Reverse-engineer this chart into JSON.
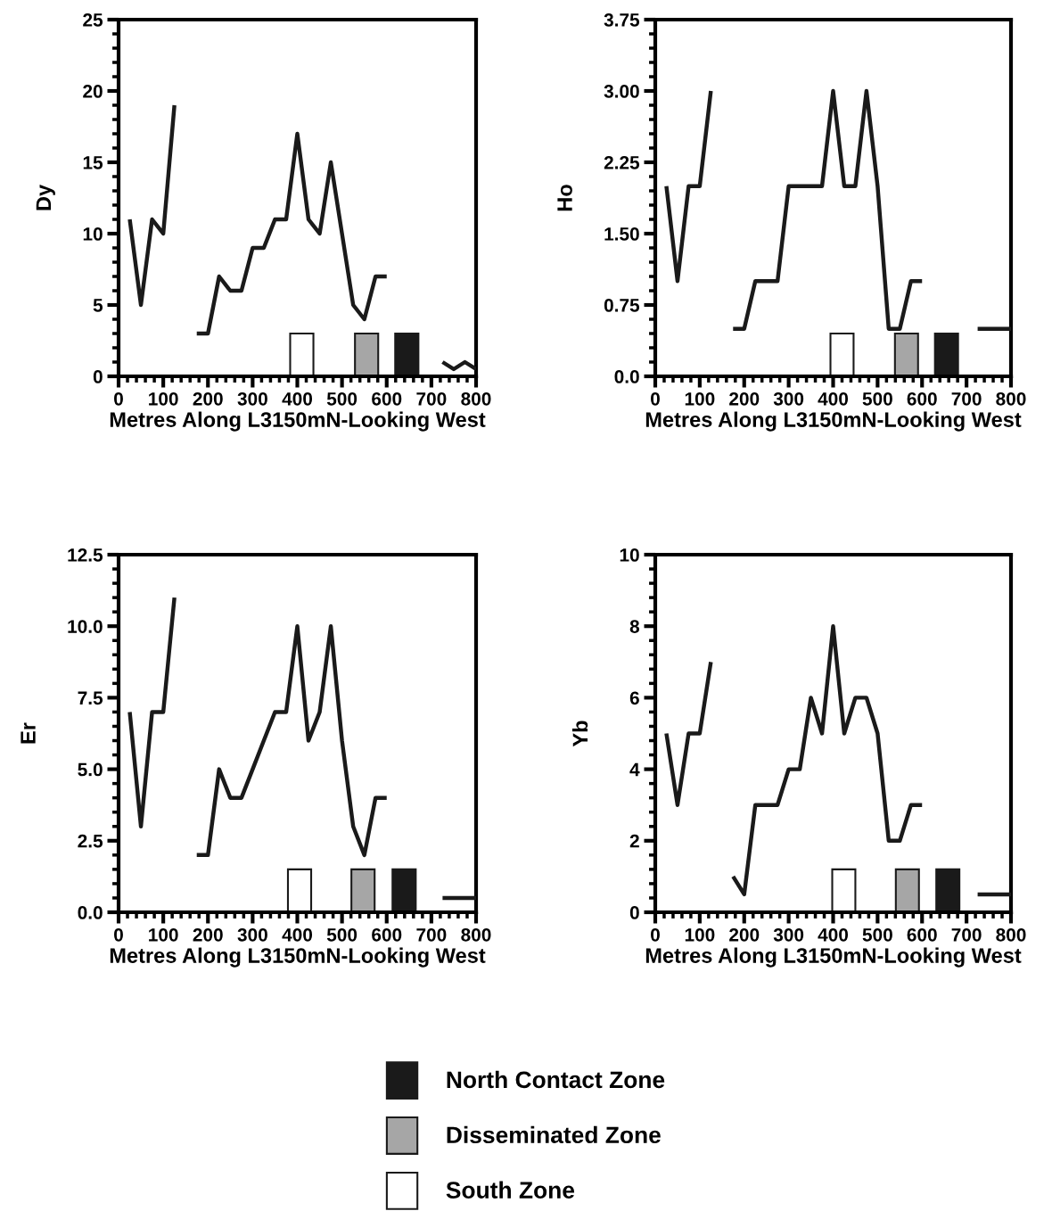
{
  "chart_data": [
    {
      "type": "line",
      "ylabel": "Dy",
      "xlabel": "Metres Along L3150mN-Looking West",
      "xlim": [
        0,
        800
      ],
      "xticks": [
        0,
        100,
        200,
        300,
        400,
        500,
        600,
        700,
        800
      ],
      "ylim": [
        0,
        25
      ],
      "yticks": [
        0,
        5,
        10,
        15,
        20,
        25
      ],
      "series": [
        {
          "color": "#1a1a1a",
          "x": [
            25,
            50,
            75,
            100,
            125,
            150,
            175,
            200,
            225,
            250,
            275,
            300,
            325,
            350,
            375,
            400,
            425,
            450,
            475,
            500,
            525,
            550,
            575,
            600,
            625,
            725,
            750,
            775,
            800
          ],
          "values": [
            11,
            5,
            11,
            10,
            19,
            null,
            3,
            3,
            7,
            6,
            6,
            9,
            9,
            11,
            11,
            17,
            11,
            10,
            15,
            10,
            5,
            4,
            7,
            7,
            null,
            1,
            0.5,
            1,
            0.5
          ]
        },
        {
          "type": "bar",
          "color": "#ffffff",
          "x": [
            410
          ],
          "values": [
            3
          ]
        },
        {
          "type": "bar",
          "color": "#a6a6a6",
          "x": [
            555
          ],
          "values": [
            3
          ]
        },
        {
          "type": "bar",
          "color": "#1a1a1a",
          "x": [
            645
          ],
          "values": [
            3
          ]
        }
      ]
    },
    {
      "type": "line",
      "ylabel": "Ho",
      "xlabel": "Metres Along L3150mN-Looking West",
      "xlim": [
        0,
        800
      ],
      "xticks": [
        0,
        100,
        200,
        300,
        400,
        500,
        600,
        700,
        800
      ],
      "ylim": [
        0,
        3.75
      ],
      "yticks": [
        {
          "value": 0,
          "label": "0.0"
        },
        {
          "value": 0.75,
          "label": "0.75"
        },
        {
          "value": 1.5,
          "label": "1.50"
        },
        {
          "value": 2.25,
          "label": "2.25"
        },
        {
          "value": 3,
          "label": "3.00"
        },
        {
          "value": 3.75,
          "label": "3.75"
        }
      ],
      "series": [
        {
          "color": "#1a1a1a",
          "x": [
            25,
            50,
            75,
            100,
            125,
            150,
            175,
            200,
            225,
            250,
            275,
            300,
            325,
            350,
            375,
            400,
            425,
            450,
            475,
            500,
            525,
            550,
            575,
            600,
            625,
            725,
            750,
            775,
            800
          ],
          "values": [
            2,
            1,
            2,
            2,
            3,
            null,
            0.5,
            0.5,
            1,
            1,
            1,
            2,
            2,
            2,
            2,
            3,
            2,
            2,
            3,
            2,
            0.5,
            0.5,
            1,
            1,
            null,
            0.5,
            0.5,
            0.5,
            0.5
          ]
        },
        {
          "type": "bar",
          "color": "#ffffff",
          "x": [
            420
          ],
          "values": [
            0.45
          ]
        },
        {
          "type": "bar",
          "color": "#a6a6a6",
          "x": [
            565
          ],
          "values": [
            0.45
          ]
        },
        {
          "type": "bar",
          "color": "#1a1a1a",
          "x": [
            655
          ],
          "values": [
            0.45
          ]
        }
      ]
    },
    {
      "type": "line",
      "ylabel": "Er",
      "xlabel": "Metres Along L3150mN-Looking West",
      "xlim": [
        0,
        800
      ],
      "xticks": [
        0,
        100,
        200,
        300,
        400,
        500,
        600,
        700,
        800
      ],
      "ylim": [
        0,
        12.5
      ],
      "yticks": [
        {
          "value": 0,
          "label": "0.0"
        },
        {
          "value": 2.5,
          "label": "2.5"
        },
        {
          "value": 5,
          "label": "5.0"
        },
        {
          "value": 7.5,
          "label": "7.5"
        },
        {
          "value": 10,
          "label": "10.0"
        },
        {
          "value": 12.5,
          "label": "12.5"
        }
      ],
      "series": [
        {
          "color": "#1a1a1a",
          "x": [
            25,
            50,
            75,
            100,
            125,
            150,
            175,
            200,
            225,
            250,
            275,
            300,
            325,
            350,
            375,
            400,
            425,
            450,
            475,
            500,
            525,
            550,
            575,
            600,
            625,
            725,
            750,
            775,
            800
          ],
          "values": [
            7,
            3,
            7,
            7,
            11,
            null,
            2,
            2,
            5,
            4,
            4,
            5,
            6,
            7,
            7,
            10,
            6,
            7,
            10,
            6,
            3,
            2,
            4,
            4,
            null,
            0.5,
            0.5,
            0.5,
            0.5
          ]
        },
        {
          "type": "bar",
          "color": "#ffffff",
          "x": [
            405
          ],
          "values": [
            1.5
          ]
        },
        {
          "type": "bar",
          "color": "#a6a6a6",
          "x": [
            547
          ],
          "values": [
            1.5
          ]
        },
        {
          "type": "bar",
          "color": "#1a1a1a",
          "x": [
            639
          ],
          "values": [
            1.5
          ]
        }
      ]
    },
    {
      "type": "line",
      "ylabel": "Yb",
      "xlabel": "Metres Along L3150mN-Looking West",
      "xlim": [
        0,
        800
      ],
      "xticks": [
        0,
        100,
        200,
        300,
        400,
        500,
        600,
        700,
        800
      ],
      "ylim": [
        0,
        10
      ],
      "yticks": [
        0,
        2,
        4,
        6,
        8,
        10
      ],
      "legend": "bottom",
      "series": [
        {
          "color": "#1a1a1a",
          "x": [
            25,
            50,
            75,
            100,
            125,
            150,
            175,
            200,
            225,
            250,
            275,
            300,
            325,
            350,
            375,
            400,
            425,
            450,
            475,
            500,
            525,
            550,
            575,
            600,
            625,
            725,
            750,
            775,
            800
          ],
          "values": [
            5,
            3,
            5,
            5,
            7,
            null,
            1,
            0.5,
            3,
            3,
            3,
            4,
            4,
            6,
            5,
            8,
            5,
            6,
            6,
            5,
            2,
            2,
            3,
            3,
            null,
            0.5,
            0.5,
            0.5,
            0.5
          ]
        },
        {
          "type": "bar",
          "name": "South Zone",
          "color": "#ffffff",
          "x": [
            424
          ],
          "values": [
            1.2
          ]
        },
        {
          "type": "bar",
          "name": "Disseminated Zone",
          "color": "#a6a6a6",
          "x": [
            567
          ],
          "values": [
            1.2
          ]
        },
        {
          "type": "bar",
          "name": "North Contact Zone",
          "color": "#1a1a1a",
          "x": [
            658
          ],
          "values": [
            1.2
          ]
        }
      ]
    }
  ]
}
